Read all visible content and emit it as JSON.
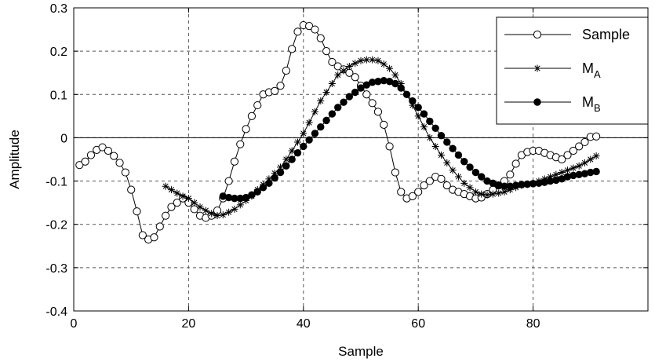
{
  "chart_data": {
    "type": "line",
    "xlabel": "Sample",
    "ylabel": "Amplitude",
    "xlim": [
      0,
      100
    ],
    "ylim": [
      -0.4,
      0.3
    ],
    "xticks": [
      0,
      20,
      40,
      60,
      80
    ],
    "xtick_labels": [
      "0",
      "20",
      "40",
      "60",
      "80"
    ],
    "yticks": [
      -0.4,
      -0.3,
      -0.2,
      -0.1,
      0,
      0.1,
      0.2,
      0.3
    ],
    "ytick_labels": [
      "-0.4",
      "-0.3",
      "-0.2",
      "-0.1",
      "0",
      "0.1",
      "0.2",
      "0.3"
    ],
    "grid": true,
    "legend_position": "top-right",
    "series": [
      {
        "name": "Sample",
        "marker": "open-circle",
        "color": "#000000",
        "x": [
          1,
          2,
          3,
          4,
          5,
          6,
          7,
          8,
          9,
          10,
          11,
          12,
          13,
          14,
          15,
          16,
          17,
          18,
          19,
          20,
          21,
          22,
          23,
          24,
          25,
          26,
          27,
          28,
          29,
          30,
          31,
          32,
          33,
          34,
          35,
          36,
          37,
          38,
          39,
          40,
          41,
          42,
          43,
          44,
          45,
          46,
          47,
          48,
          49,
          50,
          51,
          52,
          53,
          54,
          55,
          56,
          57,
          58,
          59,
          60,
          61,
          62,
          63,
          64,
          65,
          66,
          67,
          68,
          69,
          70,
          71,
          72,
          73,
          74,
          75,
          76,
          77,
          78,
          79,
          80,
          81,
          82,
          83,
          84,
          85,
          86,
          87,
          88,
          89,
          90,
          91
        ],
        "y": [
          -0.063,
          -0.055,
          -0.04,
          -0.028,
          -0.022,
          -0.03,
          -0.042,
          -0.058,
          -0.08,
          -0.12,
          -0.17,
          -0.225,
          -0.235,
          -0.23,
          -0.205,
          -0.18,
          -0.16,
          -0.15,
          -0.14,
          -0.15,
          -0.165,
          -0.18,
          -0.185,
          -0.18,
          -0.168,
          -0.14,
          -0.1,
          -0.055,
          -0.015,
          0.02,
          0.05,
          0.075,
          0.1,
          0.105,
          0.108,
          0.12,
          0.155,
          0.205,
          0.245,
          0.26,
          0.258,
          0.25,
          0.23,
          0.2,
          0.175,
          0.165,
          0.158,
          0.15,
          0.14,
          0.12,
          0.1,
          0.08,
          0.06,
          0.03,
          -0.02,
          -0.08,
          -0.125,
          -0.14,
          -0.135,
          -0.125,
          -0.11,
          -0.1,
          -0.09,
          -0.095,
          -0.11,
          -0.12,
          -0.125,
          -0.13,
          -0.135,
          -0.14,
          -0.138,
          -0.13,
          -0.12,
          -0.11,
          -0.1,
          -0.085,
          -0.06,
          -0.04,
          -0.033,
          -0.03,
          -0.03,
          -0.035,
          -0.04,
          -0.045,
          -0.05,
          -0.04,
          -0.03,
          -0.02,
          -0.01,
          0.002,
          0.003
        ]
      },
      {
        "name": "M_A",
        "marker": "asterisk",
        "color": "#000000",
        "x": [
          16,
          17,
          18,
          19,
          20,
          21,
          22,
          23,
          24,
          25,
          26,
          27,
          28,
          29,
          30,
          31,
          32,
          33,
          34,
          35,
          36,
          37,
          38,
          39,
          40,
          41,
          42,
          43,
          44,
          45,
          46,
          47,
          48,
          49,
          50,
          51,
          52,
          53,
          54,
          55,
          56,
          57,
          58,
          59,
          60,
          61,
          62,
          63,
          64,
          65,
          66,
          67,
          68,
          69,
          70,
          71,
          72,
          73,
          74,
          75,
          76,
          77,
          78,
          79,
          80,
          81,
          82,
          83,
          84,
          85,
          86,
          87,
          88,
          89,
          90,
          91
        ],
        "y": [
          -0.112,
          -0.12,
          -0.128,
          -0.135,
          -0.14,
          -0.15,
          -0.16,
          -0.168,
          -0.175,
          -0.18,
          -0.178,
          -0.172,
          -0.165,
          -0.155,
          -0.145,
          -0.135,
          -0.12,
          -0.108,
          -0.095,
          -0.082,
          -0.068,
          -0.05,
          -0.03,
          -0.01,
          0.01,
          0.035,
          0.06,
          0.085,
          0.105,
          0.125,
          0.145,
          0.155,
          0.165,
          0.172,
          0.178,
          0.18,
          0.18,
          0.178,
          0.17,
          0.16,
          0.145,
          0.125,
          0.1,
          0.075,
          0.05,
          0.025,
          0.0,
          -0.02,
          -0.04,
          -0.058,
          -0.075,
          -0.09,
          -0.105,
          -0.115,
          -0.125,
          -0.13,
          -0.132,
          -0.13,
          -0.128,
          -0.125,
          -0.12,
          -0.115,
          -0.11,
          -0.108,
          -0.105,
          -0.1,
          -0.095,
          -0.09,
          -0.085,
          -0.08,
          -0.075,
          -0.07,
          -0.065,
          -0.058,
          -0.05,
          -0.042
        ]
      },
      {
        "name": "M_B",
        "marker": "filled-circle",
        "color": "#000000",
        "x": [
          26,
          27,
          28,
          29,
          30,
          31,
          32,
          33,
          34,
          35,
          36,
          37,
          38,
          39,
          40,
          41,
          42,
          43,
          44,
          45,
          46,
          47,
          48,
          49,
          50,
          51,
          52,
          53,
          54,
          55,
          56,
          57,
          58,
          59,
          60,
          61,
          62,
          63,
          64,
          65,
          66,
          67,
          68,
          69,
          70,
          71,
          72,
          73,
          74,
          75,
          76,
          77,
          78,
          79,
          80,
          81,
          82,
          83,
          84,
          85,
          86,
          87,
          88,
          89,
          90,
          91
        ],
        "y": [
          -0.135,
          -0.138,
          -0.14,
          -0.14,
          -0.138,
          -0.132,
          -0.125,
          -0.115,
          -0.105,
          -0.093,
          -0.08,
          -0.065,
          -0.05,
          -0.035,
          -0.02,
          -0.005,
          0.01,
          0.025,
          0.04,
          0.055,
          0.07,
          0.082,
          0.095,
          0.105,
          0.115,
          0.122,
          0.128,
          0.13,
          0.132,
          0.13,
          0.125,
          0.115,
          0.1,
          0.085,
          0.07,
          0.055,
          0.038,
          0.022,
          0.005,
          -0.01,
          -0.025,
          -0.04,
          -0.055,
          -0.068,
          -0.08,
          -0.09,
          -0.1,
          -0.105,
          -0.11,
          -0.112,
          -0.112,
          -0.11,
          -0.108,
          -0.107,
          -0.106,
          -0.105,
          -0.103,
          -0.1,
          -0.098,
          -0.095,
          -0.09,
          -0.087,
          -0.085,
          -0.083,
          -0.08,
          -0.078
        ]
      }
    ]
  },
  "legend": {
    "entries": [
      {
        "label": "Sample",
        "sub": ""
      },
      {
        "label": "M",
        "sub": "A"
      },
      {
        "label": "M",
        "sub": "B"
      }
    ]
  }
}
